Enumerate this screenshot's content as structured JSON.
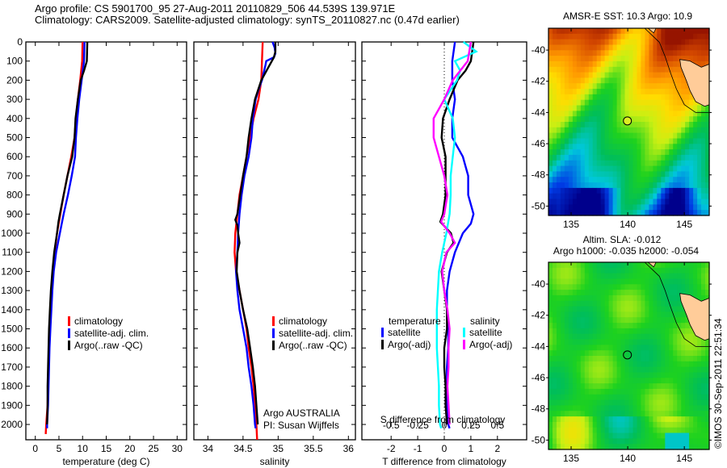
{
  "header": {
    "line1": "Argo profile: CS 5901700_95 27-Aug-2011 20110829_506 44.539S 139.971E",
    "line2": "Climatology: CARS2009. Satellite-adjusted climatology: synTS_20110827.nc (0.47d earlier)"
  },
  "footer": {
    "stamp": "©IMOS 30-Sep-2011 22:51:34"
  },
  "chart_data": [
    {
      "type": "line",
      "name": "temperature-profile",
      "xlabel": "temperature (deg C)",
      "ylabel": "depth",
      "xlim": [
        -2,
        32
      ],
      "ylim": [
        2080,
        0
      ],
      "xticks": [
        0,
        5,
        10,
        15,
        20,
        25,
        30
      ],
      "yticks": [
        0,
        100,
        200,
        300,
        400,
        500,
        600,
        700,
        800,
        900,
        1000,
        1100,
        1200,
        1300,
        1400,
        1500,
        1600,
        1700,
        1800,
        1900,
        2000
      ],
      "legend": [
        "climatology",
        "satellite-adj. clim.",
        "Argo(..raw -QC)"
      ],
      "legend_position": "center-left",
      "series": [
        {
          "name": "climatology",
          "color": "#ff0000",
          "depth": [
            0,
            100,
            200,
            300,
            400,
            500,
            600,
            700,
            800,
            900,
            1000,
            1100,
            1200,
            1300,
            1400,
            1500,
            1600,
            1700,
            1800,
            1900,
            2000,
            2050
          ],
          "values": [
            10.0,
            9.9,
            9.5,
            9.0,
            8.6,
            8.3,
            7.6,
            6.8,
            6.0,
            5.3,
            4.6,
            4.1,
            3.7,
            3.4,
            3.2,
            3.0,
            2.9,
            2.8,
            2.7,
            2.6,
            2.3,
            2.2
          ]
        },
        {
          "name": "satellite-adj. clim.",
          "color": "#0000ff",
          "depth": [
            0,
            100,
            200,
            300,
            400,
            500,
            600,
            700,
            800,
            900,
            1000,
            1100,
            1200,
            1300,
            1400,
            1500,
            1600,
            1700,
            1800,
            1900,
            2000,
            2020
          ],
          "values": [
            10.4,
            10.3,
            9.8,
            9.3,
            8.9,
            8.6,
            8.4,
            7.7,
            6.9,
            6.0,
            5.2,
            4.4,
            3.9,
            3.6,
            3.4,
            3.2,
            3.0,
            2.9,
            2.8,
            2.7,
            2.5,
            2.5
          ]
        },
        {
          "name": "Argo(..raw -QC)",
          "color": "#000000",
          "depth": [
            0,
            100,
            150,
            200,
            300,
            400,
            500,
            600,
            700,
            800,
            900,
            940,
            1000,
            1100,
            1200,
            1300,
            1400,
            1500,
            1600,
            1700,
            1800,
            1900,
            2000
          ],
          "values": [
            11.0,
            10.9,
            10.3,
            9.6,
            9.0,
            8.5,
            8.3,
            7.8,
            6.8,
            6.0,
            5.2,
            4.9,
            4.6,
            4.0,
            3.6,
            3.3,
            3.1,
            2.9,
            2.8,
            2.7,
            2.6,
            2.6,
            2.5
          ]
        }
      ]
    },
    {
      "type": "line",
      "name": "salinity-profile",
      "xlabel": "salinity",
      "xlim": [
        33.8,
        36.1
      ],
      "ylim": [
        2080,
        0
      ],
      "xticks": [
        34,
        34.5,
        35,
        35.5,
        36
      ],
      "legend": [
        "climatology",
        "satellite-adj. clim.",
        "Argo(..raw -QC)"
      ],
      "legend_position": "center-right",
      "annotations": [
        "Argo AUSTRALIA",
        "PI: Susan Wijffels"
      ],
      "series": [
        {
          "name": "climatology",
          "color": "#ff0000",
          "depth": [
            0,
            100,
            200,
            300,
            400,
            500,
            600,
            700,
            800,
            900,
            1000,
            1100,
            1200,
            1300,
            1400,
            1500,
            1600,
            1700,
            1800,
            1900,
            2000,
            2080
          ],
          "values": [
            34.78,
            34.77,
            34.76,
            34.72,
            34.65,
            34.6,
            34.55,
            34.5,
            34.45,
            34.42,
            34.39,
            34.38,
            34.4,
            34.45,
            34.5,
            34.55,
            34.58,
            34.62,
            34.65,
            34.67,
            34.69,
            34.7
          ]
        },
        {
          "name": "satellite-adj. clim.",
          "color": "#0000ff",
          "depth": [
            0,
            30,
            60,
            80,
            100,
            120,
            200,
            250,
            300,
            400,
            500,
            600,
            700,
            800,
            900,
            1000,
            1100,
            1200,
            1300,
            1400,
            1500,
            1600,
            1700,
            1800,
            1900,
            2000,
            2020
          ],
          "values": [
            34.92,
            34.95,
            34.96,
            34.94,
            34.83,
            34.82,
            34.77,
            34.72,
            34.68,
            34.64,
            34.62,
            34.58,
            34.52,
            34.48,
            34.45,
            34.43,
            34.42,
            34.4,
            34.42,
            34.45,
            34.5,
            34.55,
            34.58,
            34.62,
            34.65,
            34.67,
            34.68
          ]
        },
        {
          "name": "Argo(..raw -QC)",
          "color": "#000000",
          "depth": [
            0,
            50,
            80,
            120,
            200,
            300,
            400,
            500,
            600,
            700,
            800,
            900,
            930,
            960,
            1000,
            1050,
            1100,
            1200,
            1300,
            1400,
            1500,
            1600,
            1700,
            1800,
            1900,
            2000
          ],
          "values": [
            34.96,
            34.96,
            34.94,
            34.88,
            34.76,
            34.67,
            34.62,
            34.58,
            34.55,
            34.5,
            34.46,
            34.42,
            34.39,
            34.42,
            34.43,
            34.45,
            34.42,
            34.41,
            34.45,
            34.5,
            34.56,
            34.6,
            34.64,
            34.67,
            34.69,
            34.71
          ]
        }
      ]
    },
    {
      "type": "line",
      "name": "difference-profile",
      "xlabel": "T difference from climatology",
      "x2label": "S difference from climatology",
      "xlim": [
        -3.1,
        3.1
      ],
      "ylim": [
        2080,
        0
      ],
      "xticks": [
        -2,
        -1,
        0,
        1,
        2
      ],
      "x2ticks": [
        -0.5,
        -0.25,
        0,
        0.25,
        0.5
      ],
      "x2ticklabels": [
        "-0.5",
        "-0.25",
        "0",
        "0.25",
        "0.5"
      ],
      "legend": {
        "temperature": [
          "satellite",
          "Argo(-adj)"
        ],
        "salinity": [
          "satellite",
          "Argo(-adj)"
        ]
      },
      "legend_headers": [
        "temperature",
        "salinity"
      ],
      "zero_line": "dotted",
      "series": [
        {
          "name": "temperature satellite",
          "color": "#0000ff",
          "depth": [
            0,
            100,
            200,
            300,
            400,
            500,
            600,
            700,
            800,
            900,
            950,
            1000,
            1100,
            1200,
            1300,
            1400,
            1500,
            1600,
            1700,
            1800,
            1900,
            2000,
            2020
          ],
          "values": [
            0.4,
            0.3,
            0.3,
            0.4,
            0.3,
            0.3,
            0.7,
            0.9,
            0.9,
            1.1,
            1.0,
            0.7,
            0.4,
            0.2,
            0.1,
            0.1,
            0.15,
            0.15,
            0.1,
            0.1,
            0.1,
            0.15,
            0.2
          ]
        },
        {
          "name": "temperature Argo(-adj)",
          "color": "#000000",
          "depth": [
            0,
            100,
            150,
            200,
            300,
            400,
            500,
            600,
            700,
            800,
            900,
            940,
            1000,
            1050,
            1100,
            1200,
            1300,
            1400,
            1500,
            1600,
            1700,
            1800,
            1900,
            2000
          ],
          "values": [
            1.1,
            1.0,
            0.8,
            0.5,
            0.2,
            -0.05,
            -0.1,
            0.05,
            0.05,
            0.05,
            -0.05,
            -0.15,
            0.25,
            0.35,
            0.1,
            -0.1,
            0.0,
            0.1,
            0.1,
            0.0,
            0.0,
            0.05,
            0.05,
            0.1
          ]
        },
        {
          "name": "salinity satellite",
          "color": "#00ffff",
          "depth": [
            0,
            50,
            100,
            150,
            200,
            300,
            400,
            500,
            600,
            700,
            800,
            900,
            1000,
            1100,
            1200,
            1300,
            1400,
            1500,
            1600,
            1700,
            1800,
            1900,
            2000,
            2020
          ],
          "values": [
            0.18,
            0.3,
            0.1,
            0.15,
            0.12,
            0.0,
            0.08,
            0.1,
            0.08,
            0.06,
            0.06,
            0.05,
            0.02,
            -0.02,
            -0.05,
            -0.06,
            -0.07,
            -0.07,
            -0.07,
            -0.06,
            -0.05,
            -0.05,
            -0.04,
            -0.03
          ]
        },
        {
          "name": "salinity Argo(-adj)",
          "color": "#ff00ff",
          "depth": [
            0,
            100,
            150,
            200,
            300,
            400,
            500,
            600,
            700,
            800,
            900,
            940,
            1000,
            1050,
            1100,
            1200,
            1300,
            1400,
            1500,
            1600,
            1700,
            1800,
            1900,
            2000
          ],
          "values": [
            0.25,
            0.22,
            0.15,
            0.08,
            0.0,
            -0.1,
            -0.1,
            -0.05,
            0.0,
            0.03,
            0.0,
            -0.03,
            0.05,
            0.1,
            0.02,
            -0.02,
            0.0,
            0.03,
            0.05,
            0.04,
            0.04,
            0.03,
            0.04,
            0.05
          ]
        }
      ]
    },
    {
      "type": "heatmap",
      "name": "sst-map",
      "title": "AMSR-E SST: 10.3 Argo: 10.9",
      "xlim": [
        133,
        147.2
      ],
      "ylim": [
        -50.6,
        -38.6
      ],
      "xticks": [
        135,
        140,
        145
      ],
      "yticks": [
        -40,
        -42,
        -44,
        -46,
        -48,
        -50
      ],
      "argo_position": {
        "lon": 139.971,
        "lat": -44.539
      },
      "sst_values": {
        "argo": 10.9,
        "satellite": 10.3
      }
    },
    {
      "type": "heatmap",
      "name": "sla-map",
      "title_line1": "Altim. SLA: -0.012",
      "title_line2": "Argo h1000: -0.035 h2000: -0.054",
      "xlim": [
        133,
        147.2
      ],
      "ylim": [
        -50.6,
        -38.6
      ],
      "xticks": [
        135,
        140,
        145
      ],
      "yticks": [
        -40,
        -42,
        -44,
        -46,
        -48,
        -50
      ],
      "argo_position": {
        "lon": 139.971,
        "lat": -44.539
      },
      "sla_values": {
        "altim": -0.012,
        "h1000": -0.035,
        "h2000": -0.054
      }
    }
  ]
}
